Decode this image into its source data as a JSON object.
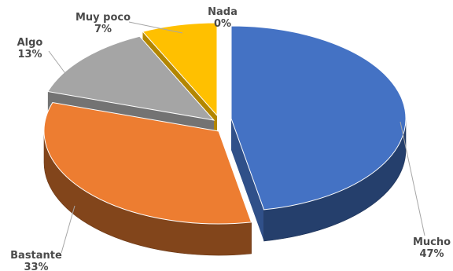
{
  "chart_data": {
    "type": "pie",
    "title": "",
    "categories": [
      "Mucho",
      "Bastante",
      "Algo",
      "Muy poco",
      "Nada"
    ],
    "values": [
      47,
      33,
      13,
      7,
      0
    ],
    "labels": [
      {
        "category": "Mucho",
        "percent": "47%"
      },
      {
        "category": "Bastante",
        "percent": "33%"
      },
      {
        "category": "Algo",
        "percent": "13%"
      },
      {
        "category": "Muy poco",
        "percent": "7%"
      },
      {
        "category": "Nada",
        "percent": "0%"
      }
    ],
    "colors": [
      "#4472c4",
      "#ed7d31",
      "#a5a5a5",
      "#ffc000",
      "#5b9bd5"
    ],
    "style": "3d-exploded",
    "legend": "none"
  }
}
